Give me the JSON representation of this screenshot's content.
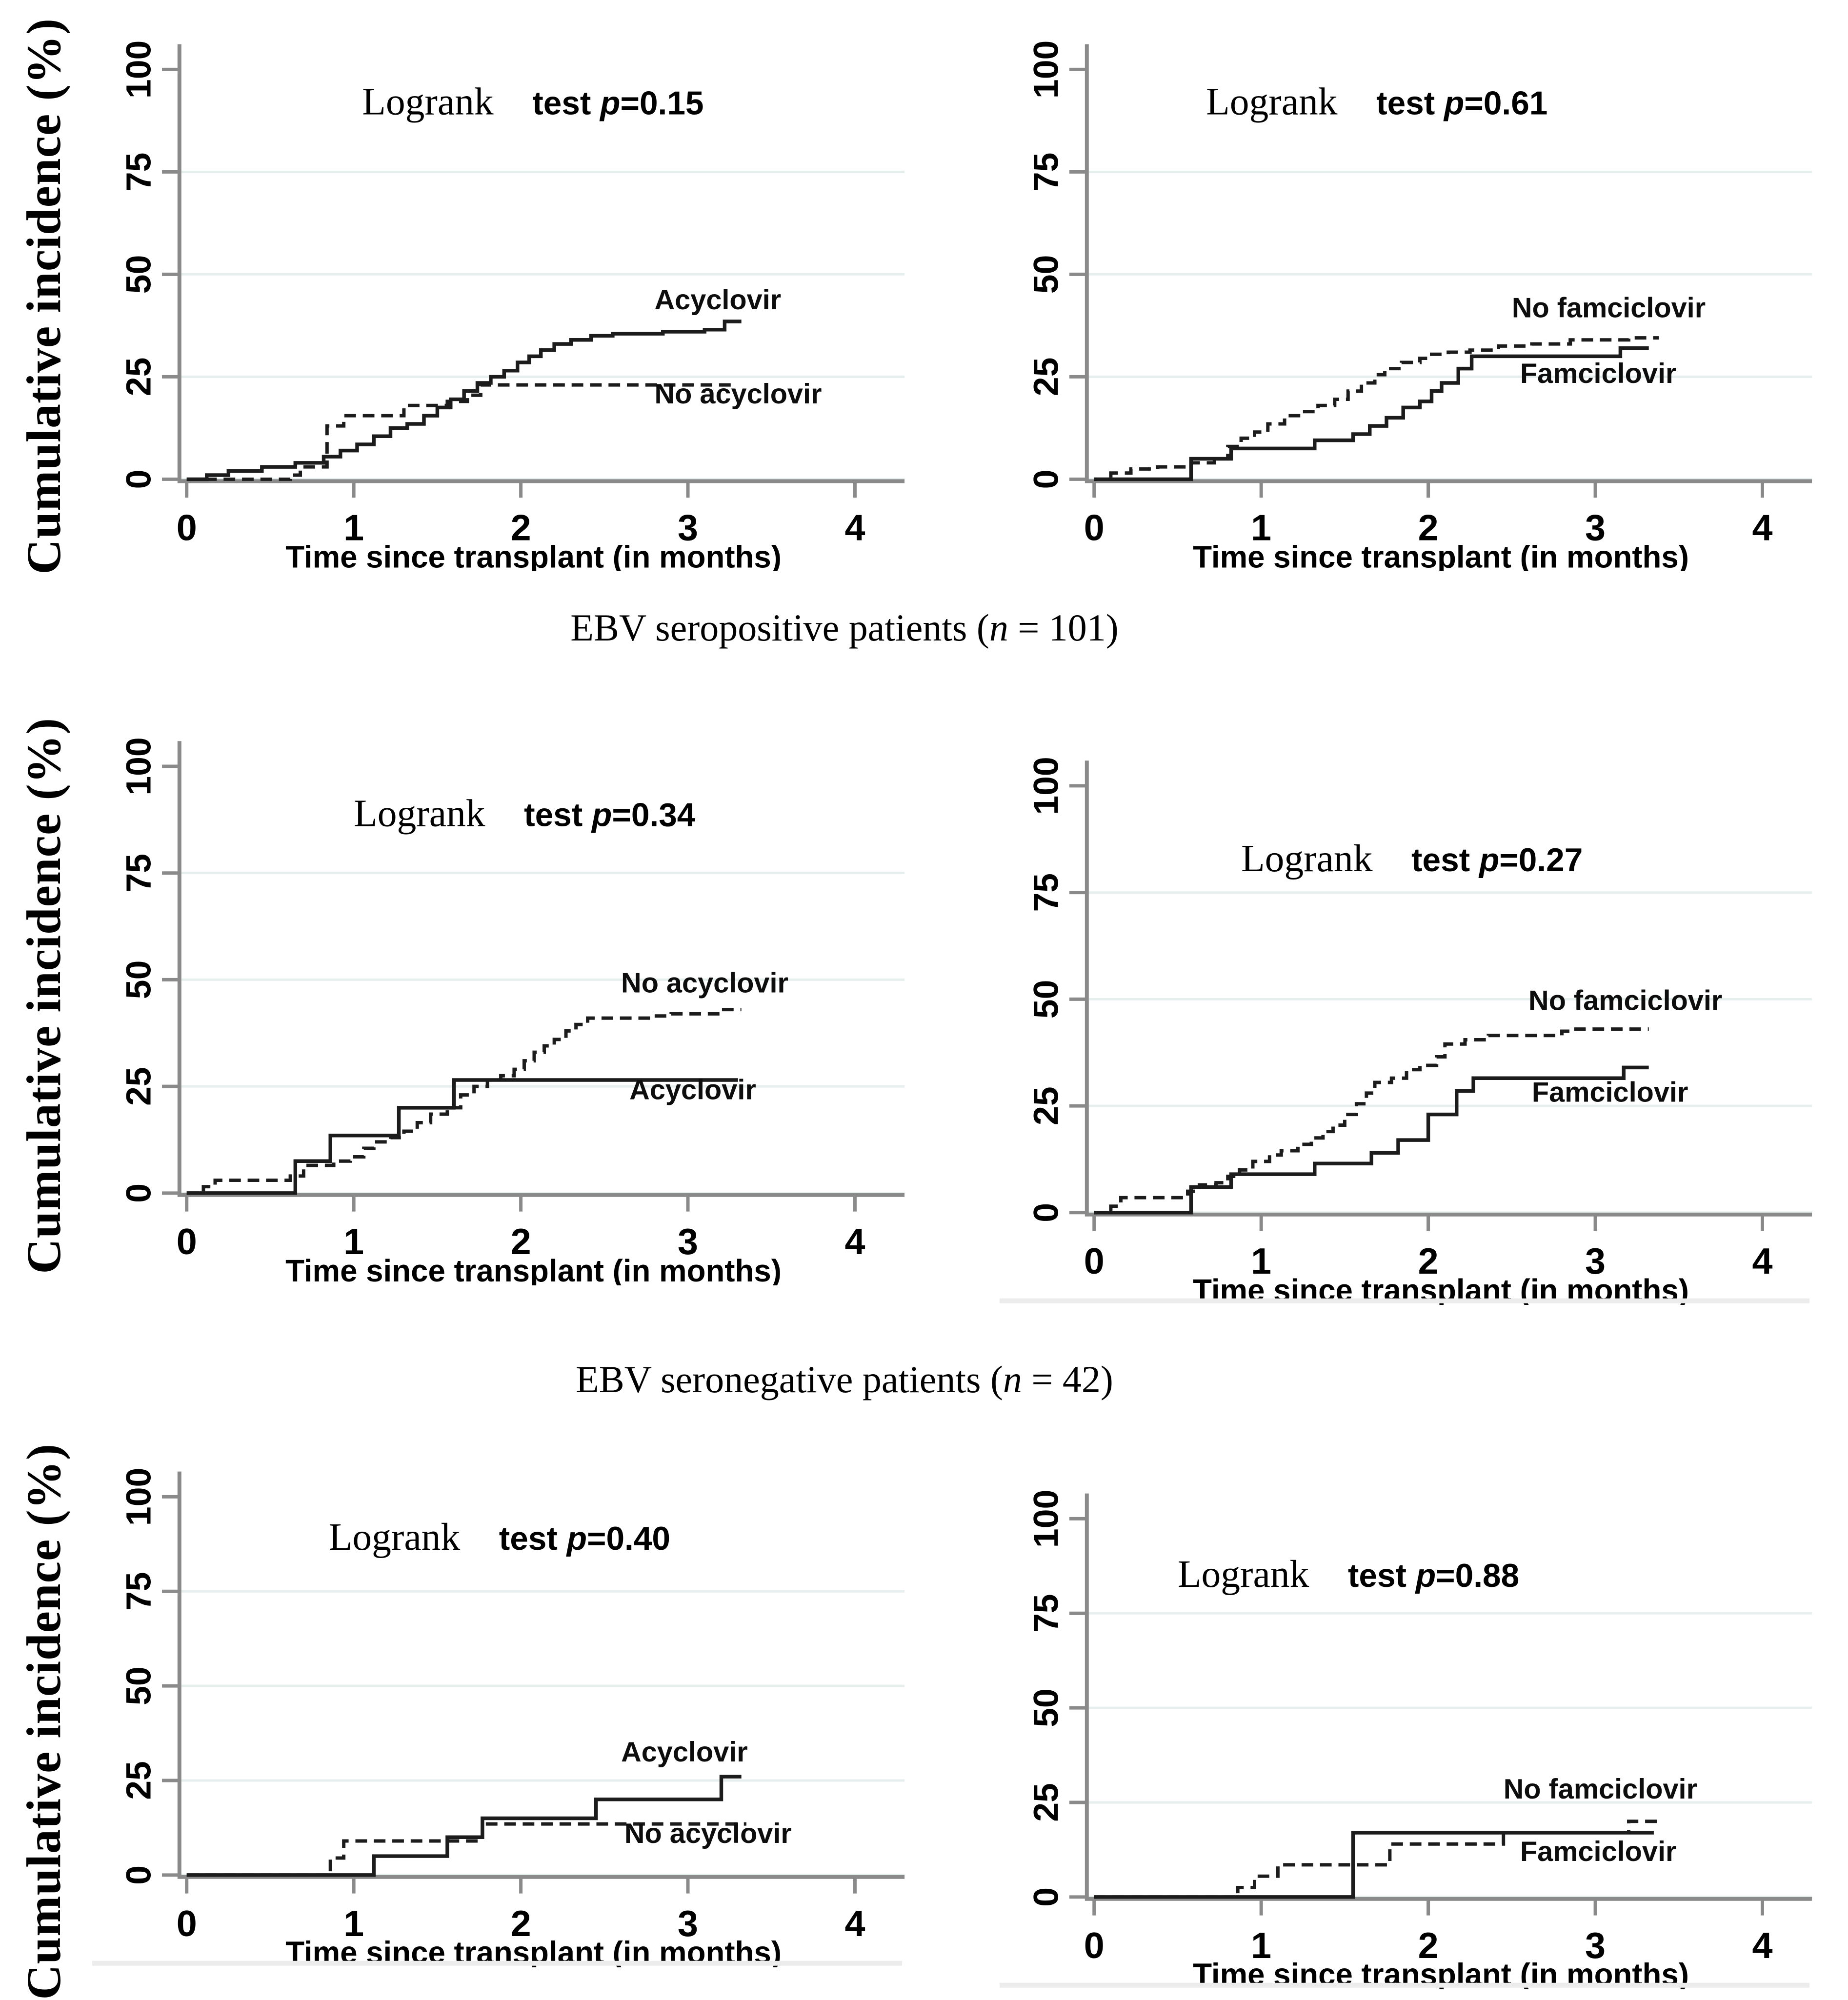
{
  "figure": {
    "y_axis_title": "Cumulative incidence (%)",
    "x_axis_title": "Time since transplant (in months)",
    "captions": [
      {
        "pre": "EBV seropositive patients (",
        "italic": "n",
        "post": " = 101)"
      },
      {
        "pre": "EBV seronegative patients (",
        "italic": "n",
        "post": " = 42)"
      }
    ]
  },
  "colors": {
    "curve": "#1c1c1c",
    "grid": "#e6efee",
    "axis": "#8a8a8a",
    "tick_label": "#000000",
    "bottom_rule": "#ececec",
    "background": "#ffffff"
  },
  "chart_data": [
    {
      "type": "line",
      "position": "top-left",
      "row": 0,
      "logrank_serif": "Logrank",
      "logrank_sans": "test ",
      "p_symbol": "p",
      "p_value": "=0.15",
      "annotation_xy": [
        1.05,
        89
      ],
      "xlabel": "Time since transplant (in months)",
      "ylabel": "Cumulative incidence (%)",
      "xlim": [
        0,
        4.05
      ],
      "ylim": [
        0,
        100
      ],
      "x_ticks": [
        "0",
        "1",
        "2",
        "3",
        "4"
      ],
      "y_ticks": [
        "0",
        "25",
        "50",
        "75",
        "100"
      ],
      "grid_y": [
        0,
        25,
        50,
        75
      ],
      "bottom_rule": false,
      "series": [
        {
          "name": "Acyclovir",
          "line": "solid",
          "label_xy": [
            2.8,
            41.5
          ],
          "points": [
            [
              0,
              0
            ],
            [
              0.12,
              1
            ],
            [
              0.25,
              2
            ],
            [
              0.45,
              3
            ],
            [
              0.65,
              4
            ],
            [
              0.82,
              5.5
            ],
            [
              0.92,
              7
            ],
            [
              1.02,
              8.5
            ],
            [
              1.12,
              10.5
            ],
            [
              1.22,
              12.5
            ],
            [
              1.32,
              13.5
            ],
            [
              1.42,
              15.5
            ],
            [
              1.5,
              17.5
            ],
            [
              1.58,
              19.5
            ],
            [
              1.66,
              21.5
            ],
            [
              1.74,
              23.5
            ],
            [
              1.82,
              25
            ],
            [
              1.9,
              26.5
            ],
            [
              1.98,
              28.5
            ],
            [
              2.05,
              30
            ],
            [
              2.12,
              31.5
            ],
            [
              2.2,
              33
            ],
            [
              2.3,
              34
            ],
            [
              2.42,
              35
            ],
            [
              2.55,
              35.5
            ],
            [
              2.85,
              36
            ],
            [
              3.1,
              36.5
            ],
            [
              3.22,
              38.5
            ],
            [
              3.32,
              38.5
            ]
          ]
        },
        {
          "name": "No acyclovir",
          "line": "dashed",
          "label_xy": [
            2.8,
            18.5
          ],
          "points": [
            [
              0,
              0
            ],
            [
              0.62,
              1
            ],
            [
              0.68,
              3
            ],
            [
              0.84,
              13
            ],
            [
              0.94,
              15.5
            ],
            [
              1.3,
              18
            ],
            [
              1.56,
              19
            ],
            [
              1.68,
              20.5
            ],
            [
              1.76,
              23
            ],
            [
              3.28,
              23
            ]
          ]
        }
      ]
    },
    {
      "type": "line",
      "position": "top-right",
      "row": 0,
      "logrank_serif": "Logrank",
      "logrank_sans": "test ",
      "p_symbol": "p",
      "p_value": "=0.61",
      "annotation_xy": [
        0.67,
        89
      ],
      "xlabel": "Time since transplant (in months)",
      "ylabel": "Cumulative incidence (%)",
      "xlim": [
        0,
        4.05
      ],
      "ylim": [
        0,
        100
      ],
      "x_ticks": [
        "0",
        "1",
        "2",
        "3",
        "4"
      ],
      "y_ticks": [
        "0",
        "25",
        "50",
        "75",
        "100"
      ],
      "grid_y": [
        0,
        25,
        50,
        75
      ],
      "bottom_rule": false,
      "series": [
        {
          "name": "No famciclovir",
          "line": "dashed",
          "label_xy": [
            2.5,
            39.5
          ],
          "points": [
            [
              0,
              0
            ],
            [
              0.1,
              1.5
            ],
            [
              0.22,
              2.5
            ],
            [
              0.38,
              3
            ],
            [
              0.58,
              4
            ],
            [
              0.72,
              5
            ],
            [
              0.8,
              8
            ],
            [
              0.88,
              10
            ],
            [
              0.96,
              11.5
            ],
            [
              1.04,
              13.5
            ],
            [
              1.14,
              15.5
            ],
            [
              1.24,
              16.5
            ],
            [
              1.34,
              18
            ],
            [
              1.44,
              19.5
            ],
            [
              1.52,
              21.5
            ],
            [
              1.6,
              23.5
            ],
            [
              1.68,
              25.5
            ],
            [
              1.74,
              27
            ],
            [
              1.84,
              28.5
            ],
            [
              1.95,
              29.5
            ],
            [
              2.02,
              30.5
            ],
            [
              2.12,
              31
            ],
            [
              2.25,
              31.5
            ],
            [
              2.42,
              32.5
            ],
            [
              2.62,
              33
            ],
            [
              2.85,
              34
            ],
            [
              3.2,
              34.5
            ],
            [
              3.38,
              34.5
            ]
          ]
        },
        {
          "name": "Famciclovir",
          "line": "solid",
          "label_xy": [
            2.55,
            23.5
          ],
          "points": [
            [
              0,
              0
            ],
            [
              0.58,
              5
            ],
            [
              0.82,
              7.5
            ],
            [
              1.32,
              9.5
            ],
            [
              1.55,
              11
            ],
            [
              1.65,
              13
            ],
            [
              1.75,
              15
            ],
            [
              1.85,
              17.5
            ],
            [
              1.95,
              19
            ],
            [
              2.02,
              21.5
            ],
            [
              2.08,
              23.5
            ],
            [
              2.18,
              27
            ],
            [
              2.26,
              30
            ],
            [
              3.15,
              32
            ],
            [
              3.32,
              32
            ]
          ]
        }
      ]
    },
    {
      "type": "line",
      "position": "middle-left",
      "row": 1,
      "logrank_serif": "Logrank",
      "logrank_sans": "test ",
      "p_symbol": "p",
      "p_value": "=0.34",
      "annotation_xy": [
        1.0,
        86
      ],
      "xlabel": "Time since transplant (in months)",
      "ylabel": "Cumulative incidence (%)",
      "xlim": [
        0,
        4.05
      ],
      "ylim": [
        0,
        100
      ],
      "x_ticks": [
        "0",
        "1",
        "2",
        "3",
        "4"
      ],
      "y_ticks": [
        "0",
        "25",
        "50",
        "75",
        "100"
      ],
      "grid_y": [
        0,
        25,
        50,
        75
      ],
      "bottom_rule": false,
      "series": [
        {
          "name": "No acyclovir",
          "line": "dashed",
          "label_xy": [
            2.6,
            47
          ],
          "points": [
            [
              0,
              0
            ],
            [
              0.1,
              1.5
            ],
            [
              0.17,
              3
            ],
            [
              0.62,
              4
            ],
            [
              0.7,
              6.5
            ],
            [
              0.88,
              7.5
            ],
            [
              0.98,
              8.5
            ],
            [
              1.06,
              10.5
            ],
            [
              1.12,
              12
            ],
            [
              1.22,
              13
            ],
            [
              1.3,
              14.5
            ],
            [
              1.38,
              16.5
            ],
            [
              1.46,
              18.5
            ],
            [
              1.56,
              20
            ],
            [
              1.64,
              23
            ],
            [
              1.72,
              25
            ],
            [
              1.8,
              26.5
            ],
            [
              1.88,
              27.5
            ],
            [
              1.96,
              29
            ],
            [
              2.02,
              31
            ],
            [
              2.08,
              33
            ],
            [
              2.14,
              34.5
            ],
            [
              2.2,
              36
            ],
            [
              2.27,
              38
            ],
            [
              2.33,
              39.5
            ],
            [
              2.4,
              41
            ],
            [
              2.8,
              41.5
            ],
            [
              2.9,
              42
            ],
            [
              3.2,
              43
            ],
            [
              3.32,
              43
            ]
          ]
        },
        {
          "name": "Acyclovir",
          "line": "solid",
          "label_xy": [
            2.65,
            22
          ],
          "points": [
            [
              0,
              0
            ],
            [
              0.65,
              7.5
            ],
            [
              0.86,
              13.5
            ],
            [
              1.27,
              20
            ],
            [
              1.6,
              26.5
            ],
            [
              3.3,
              26.5
            ]
          ]
        }
      ]
    },
    {
      "type": "line",
      "position": "middle-right",
      "row": 1,
      "logrank_serif": "Logrank",
      "logrank_sans": "test ",
      "p_symbol": "p",
      "p_value": "=0.27",
      "annotation_xy": [
        0.88,
        80
      ],
      "xlabel": "Time since transplant (in months)",
      "ylabel": "Cumulative incidence (%)",
      "xlim": [
        0,
        4.05
      ],
      "ylim": [
        0,
        100
      ],
      "x_ticks": [
        "0",
        "1",
        "2",
        "3",
        "4"
      ],
      "y_ticks": [
        "0",
        "25",
        "50",
        "75",
        "100"
      ],
      "grid_y": [
        0,
        25,
        50,
        75
      ],
      "bottom_rule": true,
      "series": [
        {
          "name": "No famciclovir",
          "line": "dashed",
          "label_xy": [
            2.6,
            47.5
          ],
          "points": [
            [
              0,
              0
            ],
            [
              0.1,
              1.5
            ],
            [
              0.16,
              3.5
            ],
            [
              0.56,
              5
            ],
            [
              0.63,
              6.5
            ],
            [
              0.73,
              7
            ],
            [
              0.8,
              8.5
            ],
            [
              0.87,
              10
            ],
            [
              0.95,
              12
            ],
            [
              1.05,
              13.5
            ],
            [
              1.12,
              14.5
            ],
            [
              1.22,
              16
            ],
            [
              1.3,
              17.5
            ],
            [
              1.37,
              19
            ],
            [
              1.43,
              20.5
            ],
            [
              1.5,
              23
            ],
            [
              1.57,
              25.5
            ],
            [
              1.63,
              28
            ],
            [
              1.68,
              30.5
            ],
            [
              1.78,
              31.5
            ],
            [
              1.87,
              33.5
            ],
            [
              1.95,
              34.5
            ],
            [
              2.05,
              36.5
            ],
            [
              2.1,
              39.5
            ],
            [
              2.22,
              40.5
            ],
            [
              2.36,
              41.5
            ],
            [
              2.8,
              42.5
            ],
            [
              2.87,
              43
            ],
            [
              3.32,
              43
            ]
          ]
        },
        {
          "name": "Famciclovir",
          "line": "solid",
          "label_xy": [
            2.62,
            26
          ],
          "points": [
            [
              0,
              0
            ],
            [
              0.58,
              6
            ],
            [
              0.82,
              9
            ],
            [
              1.32,
              11.5
            ],
            [
              1.66,
              14
            ],
            [
              1.82,
              17
            ],
            [
              2.0,
              23
            ],
            [
              2.17,
              28.5
            ],
            [
              2.27,
              31.5
            ],
            [
              3.17,
              34
            ],
            [
              3.32,
              34
            ]
          ]
        }
      ]
    },
    {
      "type": "line",
      "position": "bottom-left",
      "row": 2,
      "logrank_serif": "Logrank",
      "logrank_sans": "test ",
      "p_symbol": "p",
      "p_value": "=0.40",
      "annotation_xy": [
        0.85,
        86
      ],
      "xlabel": "Time since transplant (in months)",
      "ylabel": "Cumulative incidence (%)",
      "xlim": [
        0,
        4.05
      ],
      "ylim": [
        0,
        100
      ],
      "x_ticks": [
        "0",
        "1",
        "2",
        "3",
        "4"
      ],
      "y_ticks": [
        "0",
        "25",
        "50",
        "75",
        "100"
      ],
      "grid_y": [
        0,
        25,
        50,
        75
      ],
      "bottom_rule": true,
      "series": [
        {
          "name": "Acyclovir",
          "line": "solid",
          "label_xy": [
            2.6,
            30
          ],
          "points": [
            [
              0,
              0
            ],
            [
              1.12,
              5
            ],
            [
              1.56,
              10
            ],
            [
              1.77,
              15
            ],
            [
              2.45,
              20
            ],
            [
              3.2,
              26
            ],
            [
              3.32,
              26
            ]
          ]
        },
        {
          "name": "No acyclovir",
          "line": "dashed",
          "label_xy": [
            2.62,
            8.5
          ],
          "points": [
            [
              0,
              0
            ],
            [
              0.86,
              4.5
            ],
            [
              0.94,
              9
            ],
            [
              1.77,
              13.5
            ],
            [
              3.35,
              13.5
            ]
          ]
        }
      ]
    },
    {
      "type": "line",
      "position": "bottom-right",
      "row": 2,
      "logrank_serif": "Logrank",
      "logrank_sans": "test ",
      "p_symbol": "p",
      "p_value": "=0.88",
      "annotation_xy": [
        0.5,
        82
      ],
      "xlabel": "Time since transplant (in months)",
      "ylabel": "Cumulative incidence (%)",
      "xlim": [
        0,
        4.05
      ],
      "ylim": [
        0,
        100
      ],
      "x_ticks": [
        "0",
        "1",
        "2",
        "3",
        "4"
      ],
      "y_ticks": [
        "0",
        "25",
        "50",
        "75",
        "100"
      ],
      "grid_y": [
        0,
        25,
        50,
        75
      ],
      "bottom_rule": true,
      "series": [
        {
          "name": "No famciclovir",
          "line": "dashed",
          "label_xy": [
            2.45,
            26
          ],
          "points": [
            [
              0,
              0
            ],
            [
              0.86,
              2.5
            ],
            [
              0.96,
              5.5
            ],
            [
              1.1,
              8.5
            ],
            [
              1.77,
              14
            ],
            [
              2.45,
              17
            ],
            [
              3.2,
              20
            ],
            [
              3.38,
              20
            ]
          ]
        },
        {
          "name": "Famciclovir",
          "line": "solid",
          "label_xy": [
            2.55,
            9.5
          ],
          "points": [
            [
              0,
              0
            ],
            [
              1.55,
              17
            ],
            [
              3.35,
              17
            ]
          ]
        }
      ]
    }
  ]
}
